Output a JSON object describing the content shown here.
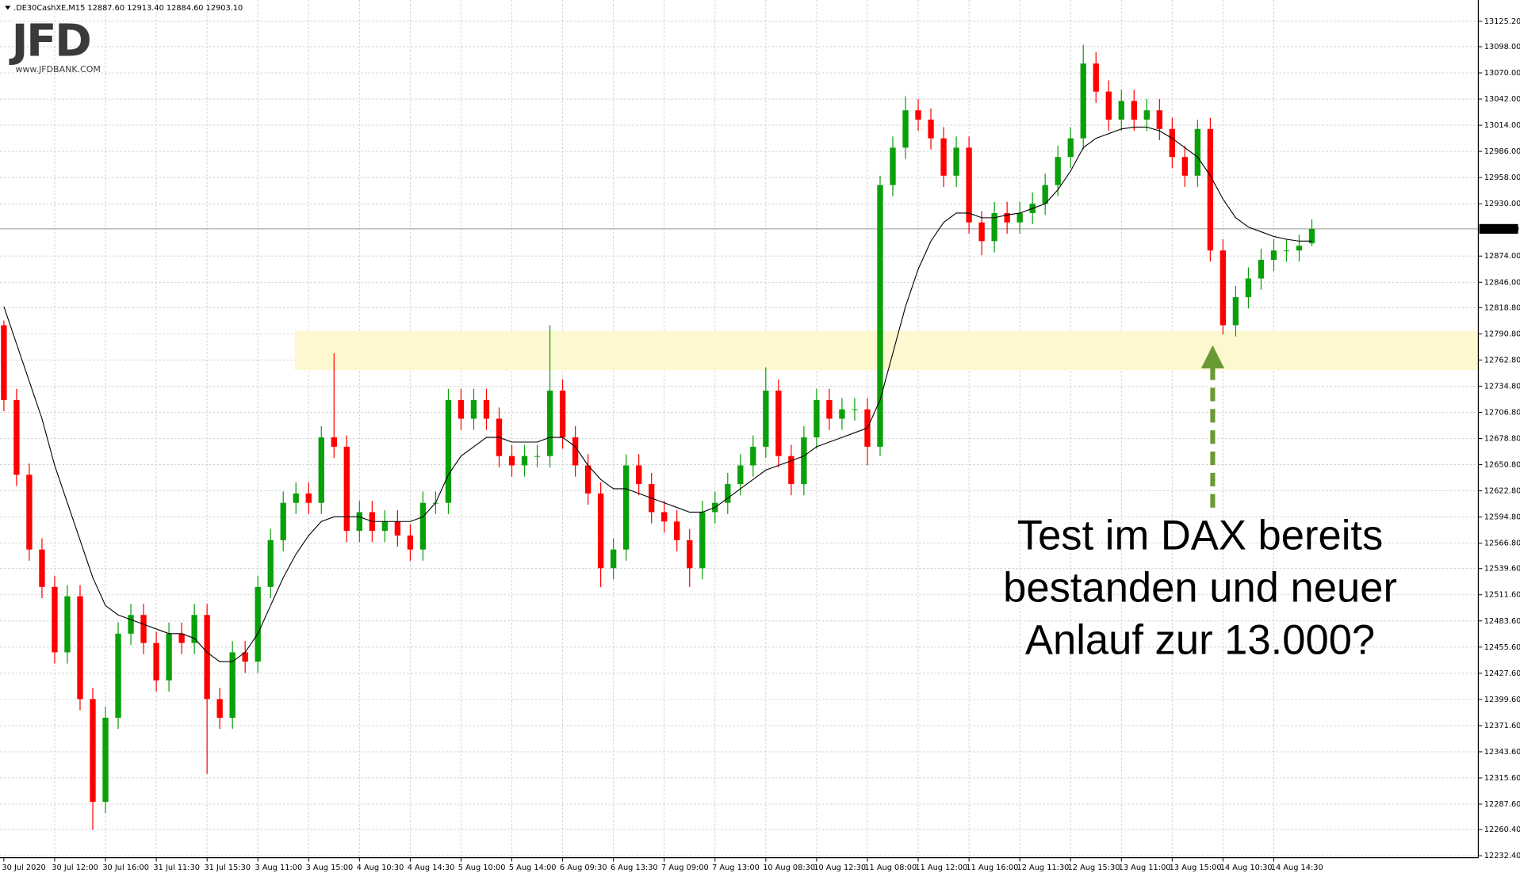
{
  "logo": {
    "name": "JFD",
    "url": "www.JFDBANK.COM"
  },
  "chart_data": {
    "type": "candlestick",
    "title": ".DE30CashXE,M15  12887.60 12913.40 12884.60 12903.10",
    "up_color": "#0aa00a",
    "down_color": "#ff0000",
    "ma_color": "#000000",
    "grid": true,
    "ylim": [
      12230.3,
      13148.0
    ],
    "yticks": [
      {
        "value": 12232.4,
        "label": "12232.40"
      },
      {
        "value": 12260.4,
        "label": "12260.40"
      },
      {
        "value": 12287.6,
        "label": "12287.60"
      },
      {
        "value": 12315.6,
        "label": "12315.60"
      },
      {
        "value": 12343.6,
        "label": "12343.60"
      },
      {
        "value": 12371.6,
        "label": "12371.60"
      },
      {
        "value": 12399.6,
        "label": "12399.60"
      },
      {
        "value": 12427.6,
        "label": "12427.60"
      },
      {
        "value": 12455.6,
        "label": "12455.60"
      },
      {
        "value": 12483.6,
        "label": "12483.60"
      },
      {
        "value": 12511.6,
        "label": "12511.60"
      },
      {
        "value": 12539.6,
        "label": "12539.60"
      },
      {
        "value": 12566.8,
        "label": "12566.80"
      },
      {
        "value": 12594.8,
        "label": "12594.80"
      },
      {
        "value": 12622.8,
        "label": "12622.80"
      },
      {
        "value": 12650.8,
        "label": "12650.80"
      },
      {
        "value": 12678.8,
        "label": "12678.80"
      },
      {
        "value": 12706.8,
        "label": "12706.80"
      },
      {
        "value": 12734.8,
        "label": "12734.80"
      },
      {
        "value": 12762.8,
        "label": "12762.80"
      },
      {
        "value": 12790.8,
        "label": "12790.80"
      },
      {
        "value": 12818.8,
        "label": "12818.80"
      },
      {
        "value": 12846,
        "label": "12846.00"
      },
      {
        "value": 12874,
        "label": "12874.00"
      },
      {
        "value": 12930,
        "label": "12930.00"
      },
      {
        "value": 12958,
        "label": "12958.00"
      },
      {
        "value": 12986,
        "label": "12986.00"
      },
      {
        "value": 13014,
        "label": "13014.00"
      },
      {
        "value": 13042,
        "label": "13042.00"
      },
      {
        "value": 13070,
        "label": "13070.00"
      },
      {
        "value": 13098,
        "label": "13098.00"
      },
      {
        "value": 13125.2,
        "label": "13125.20"
      }
    ],
    "last_price": {
      "value": 12903.1,
      "label": "12903.10"
    },
    "zone": {
      "range": [
        12752,
        12794
      ],
      "color": "#fdf8cf"
    },
    "annotation": [
      "Test im DAX bereits",
      "bestanden und neuer",
      "Anlauf zur 13.000?"
    ],
    "categories": [
      "30 Jul 2020",
      null,
      null,
      null,
      "30 Jul 12:00",
      null,
      null,
      null,
      "30 Jul 16:00",
      null,
      null,
      null,
      "31 Jul 11:30",
      null,
      null,
      null,
      "31 Jul 15:30",
      null,
      null,
      null,
      "3 Aug 11:00",
      null,
      null,
      null,
      "3 Aug 15:00",
      null,
      null,
      null,
      "4 Aug 10:30",
      null,
      null,
      null,
      "4 Aug 14:30",
      null,
      null,
      null,
      "5 Aug 10:00",
      null,
      null,
      null,
      "5 Aug 14:00",
      null,
      null,
      null,
      "6 Aug 09:30",
      null,
      null,
      null,
      "6 Aug 13:30",
      null,
      null,
      null,
      "7 Aug 09:00",
      null,
      null,
      null,
      "7 Aug 13:00",
      null,
      null,
      null,
      "10 Aug 08:30",
      null,
      null,
      null,
      "10 Aug 12:30",
      null,
      null,
      null,
      "11 Aug 08:00",
      null,
      null,
      null,
      "11 Aug 12:00",
      null,
      null,
      null,
      "11 Aug 16:00",
      null,
      null,
      null,
      "12 Aug 11:30",
      null,
      null,
      null,
      "12 Aug 15:30",
      null,
      null,
      null,
      "13 Aug 11:00",
      null,
      null,
      null,
      "13 Aug 15:00",
      null,
      null,
      null,
      "14 Aug 10:30",
      null,
      null,
      null,
      "14 Aug 14:30",
      null,
      null,
      null
    ],
    "open": [
      12800,
      12720,
      12640,
      12560,
      12520,
      12450,
      12510,
      12400,
      12290,
      12380,
      12470,
      12490,
      12460,
      12420,
      12470,
      12460,
      12490,
      12400,
      12380,
      12450,
      12440,
      12520,
      12570,
      12610,
      12620,
      12610,
      12680,
      12670,
      12580,
      12600,
      12580,
      12590,
      12575,
      12560,
      12610,
      12610,
      12720,
      12700,
      12720,
      12700,
      12660,
      12650,
      12660,
      12660,
      12730,
      12680,
      12650,
      12620,
      12540,
      12560,
      12650,
      12630,
      12600,
      12590,
      12570,
      12540,
      12600,
      12610,
      12630,
      12650,
      12670,
      12730,
      12660,
      12630,
      12680,
      12720,
      12700,
      12710,
      12710,
      12670,
      12950,
      12990,
      13030,
      13020,
      13000,
      12960,
      12990,
      12910,
      12890,
      12920,
      12910,
      12920,
      12930,
      12950,
      12980,
      13000,
      13080,
      13050,
      13020,
      13040,
      13020,
      13030,
      13010,
      12980,
      12960,
      13010,
      12880,
      12800,
      12830,
      12850,
      12870,
      12880,
      12880,
      12887.6
    ],
    "high": [
      12805,
      12732,
      12652,
      12572,
      12532,
      12522,
      12522,
      12412,
      12392,
      12482,
      12502,
      12502,
      12472,
      12482,
      12482,
      12502,
      12502,
      12412,
      12462,
      12462,
      12532,
      12582,
      12622,
      12632,
      12632,
      12692,
      12770,
      12682,
      12612,
      12612,
      12602,
      12602,
      12587,
      12622,
      12622,
      12732,
      12732,
      12732,
      12732,
      12712,
      12672,
      12672,
      12672,
      12800,
      12742,
      12692,
      12662,
      12632,
      12572,
      12662,
      12662,
      12642,
      12612,
      12602,
      12582,
      12612,
      12622,
      12642,
      12662,
      12682,
      12755,
      12742,
      12672,
      12692,
      12732,
      12732,
      12722,
      12722,
      12722,
      12960,
      13002,
      13045,
      13042,
      13032,
      13012,
      13002,
      13002,
      12922,
      12932,
      12932,
      12932,
      12942,
      12962,
      12992,
      13012,
      13100,
      13092,
      13062,
      13052,
      13052,
      13042,
      13042,
      13022,
      12992,
      13020,
      13022,
      12892,
      12842,
      12862,
      12882,
      12892,
      12892,
      12897,
      12913.4
    ],
    "low": [
      12708,
      12628,
      12548,
      12508,
      12438,
      12438,
      12388,
      12260,
      12278,
      12368,
      12458,
      12448,
      12408,
      12408,
      12448,
      12448,
      12320,
      12368,
      12368,
      12428,
      12428,
      12508,
      12558,
      12598,
      12598,
      12598,
      12658,
      12568,
      12568,
      12568,
      12568,
      12563,
      12548,
      12548,
      12598,
      12598,
      12688,
      12688,
      12688,
      12648,
      12638,
      12638,
      12648,
      12648,
      12668,
      12638,
      12608,
      12520,
      12528,
      12548,
      12618,
      12588,
      12578,
      12558,
      12520,
      12528,
      12588,
      12598,
      12618,
      12638,
      12658,
      12648,
      12618,
      12618,
      12668,
      12688,
      12688,
      12698,
      12650,
      12660,
      12938,
      12978,
      13008,
      12988,
      12948,
      12948,
      12898,
      12875,
      12878,
      12898,
      12898,
      12908,
      12918,
      12938,
      12968,
      12988,
      13038,
      13008,
      13008,
      13008,
      13008,
      12998,
      12968,
      12948,
      12948,
      12868,
      12790,
      12788,
      12818,
      12838,
      12858,
      12868,
      12868,
      12884.6
    ],
    "close": [
      12720,
      12640,
      12560,
      12520,
      12450,
      12510,
      12400,
      12290,
      12380,
      12470,
      12490,
      12460,
      12420,
      12470,
      12460,
      12490,
      12400,
      12380,
      12450,
      12440,
      12520,
      12570,
      12610,
      12620,
      12610,
      12680,
      12670,
      12580,
      12600,
      12580,
      12590,
      12575,
      12560,
      12610,
      12610,
      12720,
      12700,
      12720,
      12700,
      12660,
      12650,
      12660,
      12660,
      12730,
      12680,
      12650,
      12620,
      12540,
      12560,
      12650,
      12630,
      12600,
      12590,
      12570,
      12540,
      12600,
      12610,
      12630,
      12650,
      12670,
      12730,
      12660,
      12630,
      12680,
      12720,
      12700,
      12710,
      12710,
      12670,
      12950,
      12990,
      13030,
      13020,
      13000,
      12960,
      12990,
      12910,
      12890,
      12920,
      12910,
      12920,
      12930,
      12950,
      12980,
      13000,
      13080,
      13050,
      13020,
      13040,
      13020,
      13030,
      13010,
      12980,
      12960,
      13010,
      12880,
      12800,
      12830,
      12850,
      12870,
      12880,
      12880,
      12885,
      12903.1
    ],
    "moving_average": [
      12820,
      12780,
      12740,
      12700,
      12650,
      12610,
      12570,
      12530,
      12500,
      12490,
      12485,
      12480,
      12475,
      12470,
      12470,
      12465,
      12450,
      12440,
      12440,
      12450,
      12470,
      12500,
      12530,
      12555,
      12575,
      12590,
      12595,
      12595,
      12595,
      12590,
      12590,
      12590,
      12590,
      12595,
      12610,
      12640,
      12660,
      12670,
      12680,
      12680,
      12675,
      12675,
      12675,
      12680,
      12680,
      12670,
      12650,
      12635,
      12625,
      12625,
      12620,
      12615,
      12610,
      12605,
      12600,
      12600,
      12605,
      12615,
      12625,
      12635,
      12645,
      12650,
      12655,
      12660,
      12670,
      12675,
      12680,
      12685,
      12690,
      12720,
      12770,
      12820,
      12860,
      12890,
      12910,
      12920,
      12920,
      12915,
      12915,
      12918,
      12920,
      12925,
      12930,
      12945,
      12965,
      12990,
      13000,
      13005,
      13010,
      13012,
      13012,
      13008,
      13000,
      12990,
      12980,
      12960,
      12935,
      12915,
      12905,
      12900,
      12895,
      12892,
      12890,
      12890
    ]
  }
}
